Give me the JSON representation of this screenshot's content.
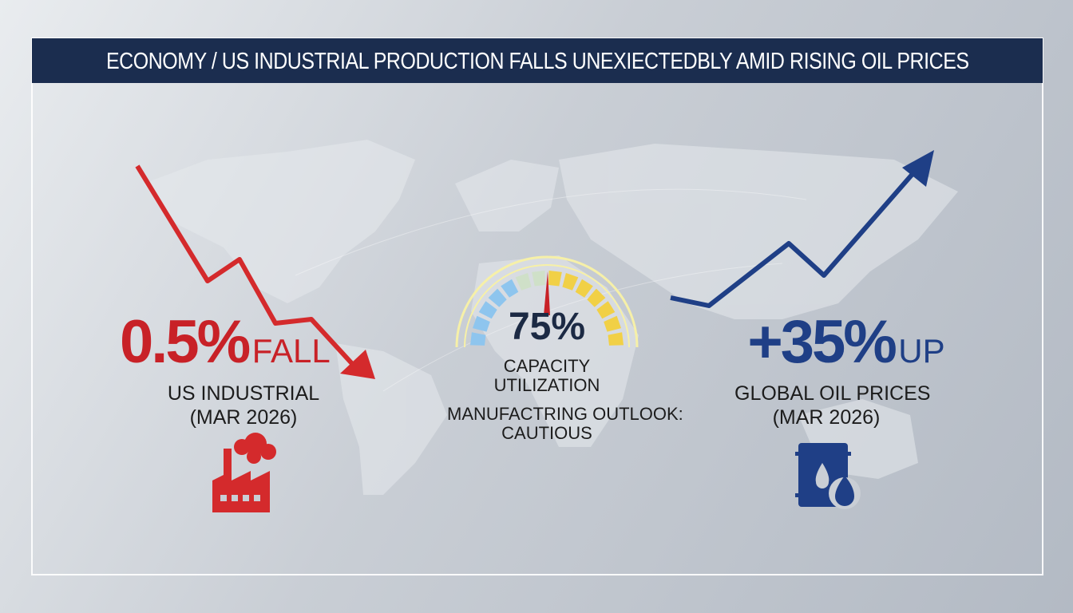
{
  "header": {
    "title": "ECONOMY / US INDUSTRIAL PRODUCTION FALLS UNEXIECTEDBLY AMID RISING OIL PRICES"
  },
  "left": {
    "value": "0.5%",
    "word": "FALL",
    "label": "US INDUSTRIAL",
    "date": "(MAR 2026)"
  },
  "center": {
    "value": "75%",
    "label_line1": "CAPACITY",
    "label_line2": "UTILIZATION",
    "outlook_line1": "MANUFACTRING OUTLOOK:",
    "outlook_line2": "CAUTIOUS"
  },
  "right": {
    "value": "+35%",
    "word": "UP",
    "label": "GLOBAL OIL PRICES",
    "date": "(MAR 2026)"
  }
}
